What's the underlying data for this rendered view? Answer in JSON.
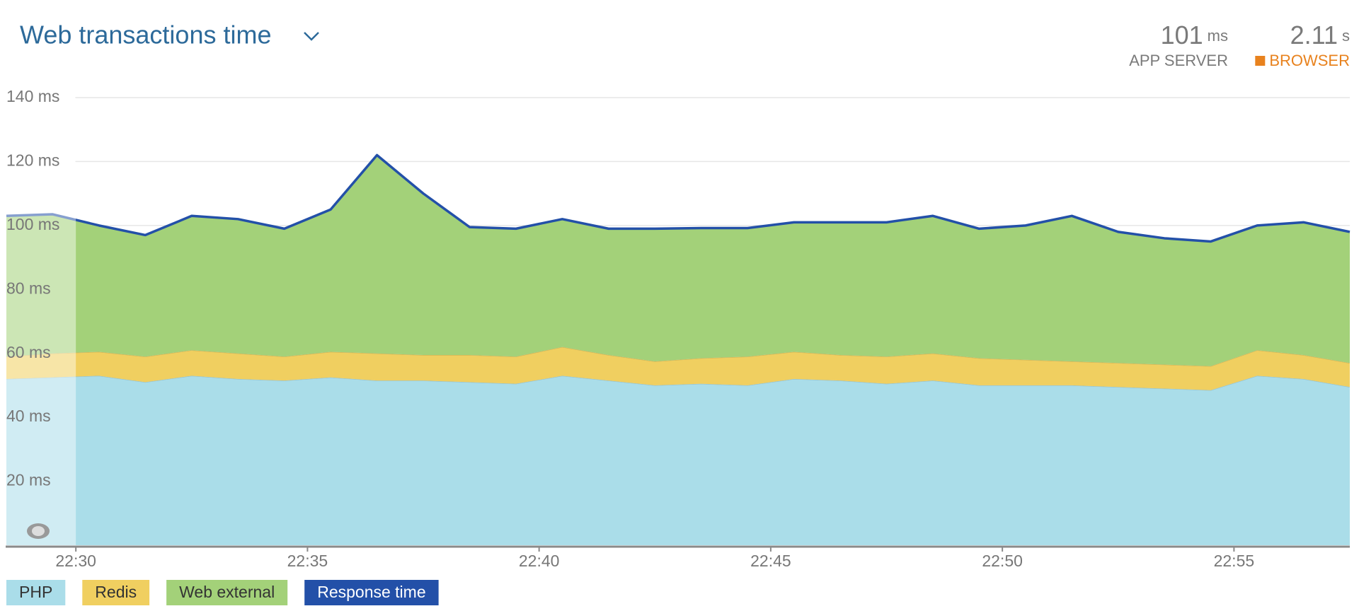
{
  "chart_data": {
    "type": "stacked-area",
    "title": "Web transactions time",
    "summary": [
      {
        "value": 101,
        "unit": "ms",
        "label": "APP SERVER",
        "color": "#7a7a7a"
      },
      {
        "value": 2.11,
        "unit": "s",
        "label": "BROWSER",
        "color": "#e8821e"
      }
    ],
    "x": [
      28.5,
      29.5,
      30.5,
      31.5,
      32.5,
      33.5,
      34.5,
      35.5,
      36.5,
      37.5,
      38.5,
      39.5,
      40.5,
      41.5,
      42.5,
      43.5,
      44.5,
      45.5,
      46.5,
      47.5,
      48.5,
      49.5,
      50.5,
      51.5,
      52.5,
      53.5,
      54.5,
      55.5,
      56.5,
      57.5
    ],
    "xlim": [
      28.5,
      57.5
    ],
    "xticks": [
      {
        "value": 30,
        "label": "22:30"
      },
      {
        "value": 35,
        "label": "22:35"
      },
      {
        "value": 40,
        "label": "22:40"
      },
      {
        "value": 45,
        "label": "22:45"
      },
      {
        "value": 50,
        "label": "22:50"
      },
      {
        "value": 55,
        "label": "22:55"
      }
    ],
    "ylim": [
      0,
      140
    ],
    "yticks": [
      {
        "value": 20,
        "label": "20 ms"
      },
      {
        "value": 40,
        "label": "40 ms"
      },
      {
        "value": 60,
        "label": "60 ms"
      },
      {
        "value": 80,
        "label": "80 ms"
      },
      {
        "value": 100,
        "label": "100 ms"
      },
      {
        "value": 120,
        "label": "120 ms"
      },
      {
        "value": 140,
        "label": "140 ms"
      }
    ],
    "grid": true,
    "series": [
      {
        "name": "PHP",
        "color": "#aadde9",
        "kind": "area",
        "values": [
          52,
          52.5,
          53,
          51,
          53,
          52,
          51.5,
          52.5,
          51.5,
          51.5,
          51,
          50.5,
          53,
          51.5,
          50,
          50.5,
          50,
          52,
          51.5,
          50.5,
          51.5,
          50,
          50,
          50,
          49.5,
          49,
          48.5,
          53,
          52,
          49.5
        ]
      },
      {
        "name": "Redis",
        "color": "#f0cf60",
        "kind": "area",
        "values": [
          7,
          7.5,
          7.5,
          8,
          8,
          8,
          7.5,
          8,
          8.5,
          8,
          8.5,
          8.5,
          9,
          8,
          7.5,
          8,
          9,
          8.5,
          8,
          8.5,
          8.5,
          8.5,
          8,
          7.5,
          7.5,
          7.5,
          7.5,
          8,
          7.5,
          7.5
        ]
      },
      {
        "name": "Web external",
        "color": "#a3d179",
        "kind": "area",
        "values": [
          44,
          43.5,
          39.5,
          38,
          42,
          42,
          40,
          44.5,
          62,
          50.5,
          40,
          40,
          40,
          39.5,
          41.5,
          40.7,
          40.2,
          40.5,
          41.5,
          42,
          43,
          40.5,
          42,
          45.5,
          41,
          39.5,
          39,
          39,
          41.5,
          41
        ]
      },
      {
        "name": "Response time",
        "color": "#2350a8",
        "kind": "line",
        "values": [
          103,
          103.5,
          100,
          97,
          103,
          102,
          99,
          105,
          122,
          110,
          99.5,
          99,
          102,
          99,
          99,
          99.2,
          99.2,
          101,
          101,
          101,
          103,
          99,
          100,
          103,
          98,
          96,
          95,
          100,
          101,
          98
        ]
      }
    ]
  }
}
